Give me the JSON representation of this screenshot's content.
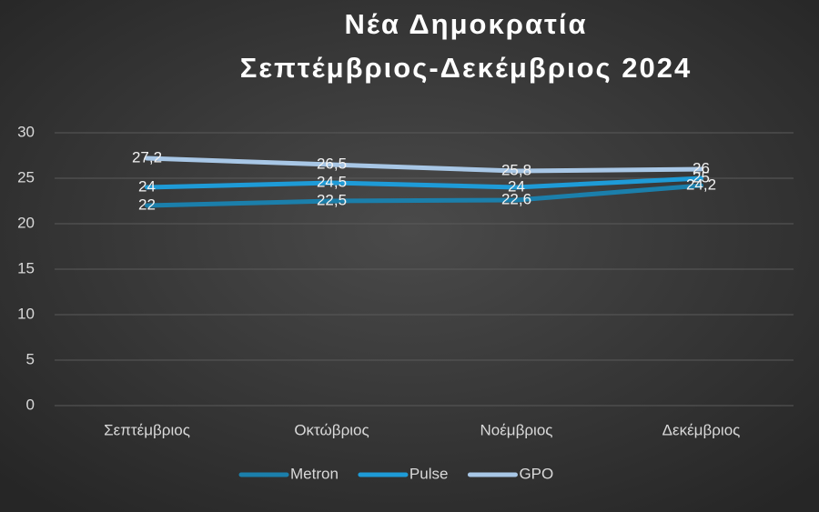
{
  "chart_data": {
    "type": "line",
    "title": "Νέα Δημοκρατία",
    "subtitle": "Σεπτέμβριος-Δεκέμβριος 2024",
    "categories": [
      "Σεπτέμβριος",
      "Οκτώβριος",
      "Νοέμβριος",
      "Δεκέμβριος"
    ],
    "series": [
      {
        "name": "Metron",
        "color": "#1b7fab",
        "values": [
          22,
          22.5,
          22.6,
          24.2
        ],
        "value_labels": [
          "22",
          "22,5",
          "22,6",
          "24,2"
        ]
      },
      {
        "name": "Pulse",
        "color": "#1e9bd7",
        "values": [
          24,
          24.5,
          24,
          25
        ],
        "value_labels": [
          "24",
          "24,5",
          "24",
          "25"
        ]
      },
      {
        "name": "GPO",
        "color": "#a8c7e6",
        "values": [
          27.2,
          26.5,
          25.8,
          26
        ],
        "value_labels": [
          "27,2",
          "26,5",
          "25,8",
          "26"
        ]
      }
    ],
    "ylim": [
      0,
      30
    ],
    "yticks": [
      0,
      5,
      10,
      15,
      20,
      25,
      30
    ],
    "grid": true,
    "legend": "bottom"
  }
}
